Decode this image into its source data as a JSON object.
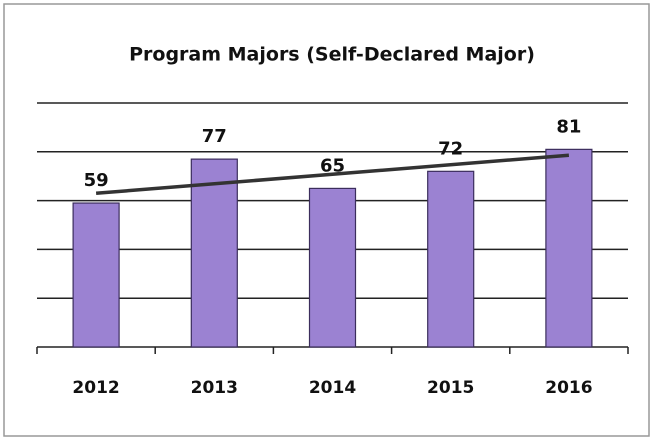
{
  "chart_data": {
    "type": "bar",
    "title": "Program Majors (Self-Declared Major)",
    "categories": [
      "2012",
      "2013",
      "2014",
      "2015",
      "2016"
    ],
    "values": [
      59,
      77,
      65,
      72,
      81
    ],
    "color": "#9b82d2",
    "ylim": [
      0,
      100
    ],
    "yticks": [
      0,
      20,
      40,
      60,
      80,
      100
    ],
    "grid": true,
    "trendline": true,
    "trendline_color": "#333333"
  }
}
